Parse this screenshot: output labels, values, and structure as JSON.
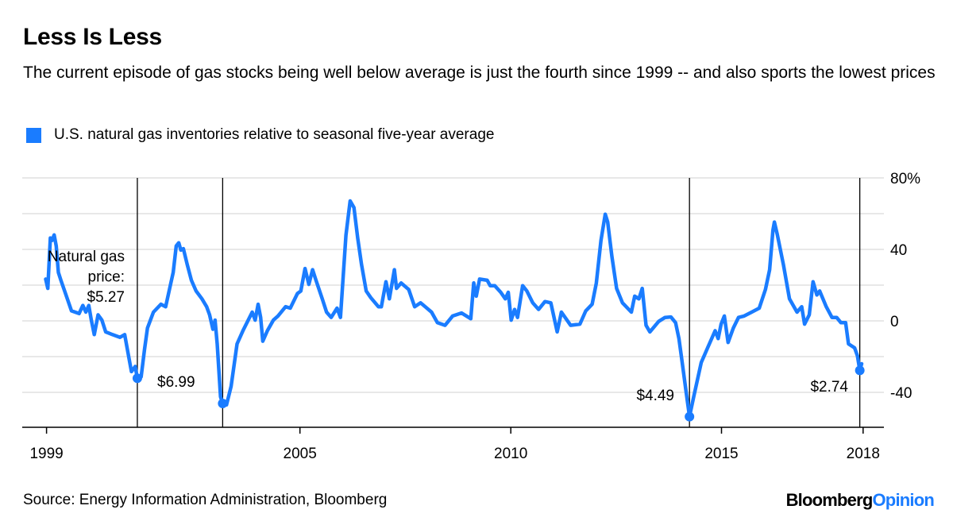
{
  "title": "Less Is Less",
  "subtitle": "The current episode of gas stocks being well below average is just the fourth since 1999 -- and also sports the lowest prices",
  "legend": {
    "label": "U.S. natural gas inventories relative to seasonal five-year average",
    "color": "#1a7cff"
  },
  "source": "Source: Energy Information Administration, Bloomberg",
  "logo": {
    "part1": "Bloomberg",
    "part2": "Opinion"
  },
  "chart_data": {
    "type": "line",
    "title": "Less Is Less",
    "xlabel": "",
    "ylabel": "",
    "ylim": [
      -60,
      80
    ],
    "y_ticks": [
      {
        "value": 80,
        "label": "80%"
      },
      {
        "value": 40,
        "label": "40"
      },
      {
        "value": 0,
        "label": "0"
      },
      {
        "value": -40,
        "label": "-40"
      }
    ],
    "gridlines": [
      80,
      60,
      40,
      20,
      0,
      -20,
      -40
    ],
    "x_ticks": [
      {
        "value": 1999,
        "label": "1999"
      },
      {
        "value": 2005,
        "label": "2005"
      },
      {
        "value": 2010,
        "label": "2010"
      },
      {
        "value": 2015,
        "label": "2015"
      },
      {
        "value": 2018,
        "label": "2018"
      }
    ],
    "y_axis_position": "right",
    "grid": true,
    "line_color": "#1a7cff",
    "series": [
      {
        "name": "U.S. natural gas inventories relative to seasonal five-year average",
        "x": [
          1998.98,
          1999.03,
          1999.09,
          1999.13,
          1999.18,
          1999.23,
          1999.28,
          1999.34,
          1999.45,
          1999.59,
          1999.77,
          1999.86,
          1999.93,
          2000.0,
          2000.06,
          2000.13,
          2000.22,
          2000.31,
          2000.4,
          2000.56,
          2000.74,
          2000.85,
          2000.96,
          2001.01,
          2001.1,
          2001.15,
          2001.24,
          2001.32,
          2001.39,
          2001.53,
          2001.71,
          2001.82,
          2001.93,
          2002.0,
          2002.07,
          2002.13,
          2002.18,
          2002.24,
          2002.33,
          2002.43,
          2002.54,
          2002.68,
          2002.79,
          2002.86,
          2002.94,
          2002.99,
          2003.04,
          2003.12,
          2003.17,
          2003.26,
          2003.37,
          2003.51,
          2003.65,
          2003.87,
          2003.94,
          2004.01,
          2004.07,
          2004.12,
          2004.23,
          2004.37,
          2004.48,
          2004.66,
          2004.77,
          2004.94,
          2005.02,
          2005.12,
          2005.21,
          2005.3,
          2005.38,
          2005.53,
          2005.63,
          2005.74,
          2005.88,
          2005.96,
          2006.09,
          2006.19,
          2006.28,
          2006.37,
          2006.46,
          2006.57,
          2006.68,
          2006.86,
          2006.93,
          2007.04,
          2007.12,
          2007.24,
          2007.29,
          2007.4,
          2007.58,
          2007.72,
          2007.86,
          2007.97,
          2008.12,
          2008.26,
          2008.44,
          2008.62,
          2008.83,
          2009.05,
          2009.12,
          2009.18,
          2009.26,
          2009.44,
          2009.51,
          2009.62,
          2009.76,
          2009.87,
          2009.94,
          2010.01,
          2010.09,
          2010.16,
          2010.28,
          2010.38,
          2010.52,
          2010.66,
          2010.81,
          2010.95,
          2011.1,
          2011.2,
          2011.42,
          2011.64,
          2011.78,
          2011.93,
          2012.03,
          2012.14,
          2012.24,
          2012.3,
          2012.4,
          2012.51,
          2012.65,
          2012.86,
          2012.94,
          2013.04,
          2013.12,
          2013.21,
          2013.3,
          2013.51,
          2013.66,
          2013.8,
          2013.91,
          2013.99,
          2014.05,
          2014.16,
          2014.24,
          2014.34,
          2014.52,
          2014.67,
          2014.85,
          2014.92,
          2014.99,
          2015.06,
          2015.14,
          2015.25,
          2015.36,
          2015.48,
          2015.64,
          2015.8,
          2015.93,
          2016.02,
          2016.09,
          2016.12,
          2016.18,
          2016.31,
          2016.44,
          2016.6,
          2016.7,
          2016.76,
          2016.86,
          2016.94,
          2017.02,
          2017.08,
          2017.22,
          2017.34,
          2017.44,
          2017.53,
          2017.63,
          2017.69,
          2017.82,
          2017.88,
          2017.93,
          2017.97
        ],
        "values": [
          23.4,
          18.2,
          46.4,
          45,
          48.1,
          41.9,
          27.1,
          22.7,
          15.3,
          5.6,
          4.1,
          8.6,
          4.9,
          8.6,
          0.4,
          -7.7,
          3.4,
          0.4,
          -6.2,
          -7.7,
          -9.2,
          -7.7,
          -21.8,
          -28.4,
          -25.5,
          -32.1,
          -31.4,
          -15.9,
          -4,
          4.9,
          9.3,
          7.9,
          19.7,
          27.1,
          41.9,
          43.7,
          39.6,
          40.4,
          31.6,
          22.7,
          16.7,
          12.3,
          7.9,
          3.4,
          -4.7,
          0.4,
          -12.9,
          -42.5,
          -46.2,
          -47,
          -36.6,
          -12.9,
          -5.5,
          4.9,
          0.4,
          9.3,
          1.9,
          -11.4,
          -5.5,
          0.4,
          2.7,
          7.9,
          7.1,
          15.3,
          16.7,
          29.3,
          20.4,
          28.6,
          22.7,
          12.3,
          4.9,
          1.9,
          7.1,
          1.9,
          47.9,
          67.1,
          63.4,
          46.4,
          31.6,
          16.7,
          13,
          7.9,
          7.9,
          21.9,
          12.3,
          28.6,
          18.2,
          21.2,
          17.5,
          7.9,
          10.1,
          7.9,
          4.9,
          -1,
          -2.5,
          2.7,
          4.4,
          1.2,
          21.2,
          13.8,
          23.4,
          22.7,
          19.7,
          19.7,
          16,
          12.3,
          16,
          0.4,
          6.4,
          1.9,
          19.7,
          16.7,
          10.1,
          6.4,
          10.8,
          10.1,
          -6.2,
          4.9,
          -2.5,
          -1.8,
          5.6,
          9.3,
          21.2,
          44.9,
          59.7,
          55.3,
          36,
          18.2,
          10.1,
          4.9,
          13.8,
          12.3,
          18.2,
          -2.5,
          -6.2,
          -0.3,
          1.9,
          2.2,
          -1,
          -9.9,
          -20.3,
          -39.6,
          -53.6,
          -42.5,
          -23.3,
          -15.1,
          -5.5,
          -9.9,
          -1.8,
          2.7,
          -12.1,
          -4,
          1.9,
          2.7,
          4.9,
          7.1,
          17.5,
          28.6,
          50.8,
          55.3,
          48.6,
          31.6,
          12.3,
          4.9,
          7.9,
          -1.8,
          3.4,
          21.9,
          14.5,
          16.7,
          7.9,
          1.9,
          1.9,
          -1,
          -1,
          -12.9,
          -15.1,
          -19.6,
          -27.7,
          -24
        ]
      }
    ],
    "annotations": [
      {
        "x": 2001.15,
        "y": -32.1,
        "lines": [
          "Natural gas",
          "price:",
          "$5.27"
        ]
      },
      {
        "x": 2003.17,
        "y": -46.2,
        "lines": [
          "$6.99"
        ]
      },
      {
        "x": 2014.24,
        "y": -53.6,
        "lines": [
          "$4.49"
        ]
      },
      {
        "x": 2017.93,
        "y": -27.7,
        "lines": [
          "$2.74"
        ]
      }
    ]
  }
}
